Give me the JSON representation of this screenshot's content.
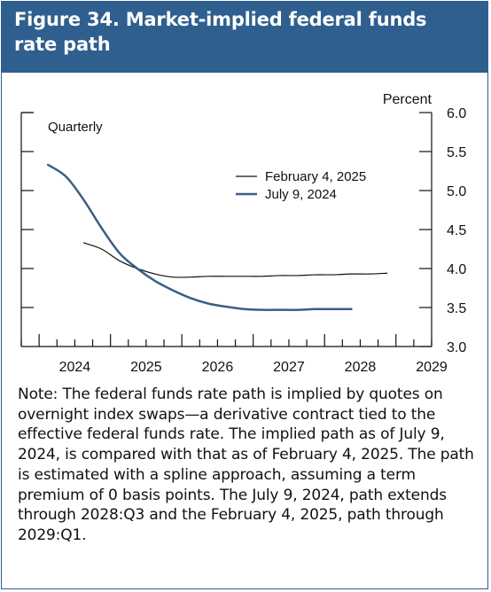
{
  "figure": {
    "title": "Figure 34. Market-implied federal funds rate path",
    "note": "Note: The federal funds rate path is implied by quotes on overnight index swaps—a derivative contract tied to the effective federal funds rate. The implied path as of July 9, 2024, is compared with that as of February 4, 2025. The path is estimated with a spline approach, assuming a term premium of 0 basis points. The July 9, 2024, path extends through 2028:Q3 and the February 4, 2025, path through 2029:Q1."
  },
  "colors": {
    "title_bar": "#2e5f8e",
    "series_feb": "#111111",
    "series_jul": "#3a5f86"
  },
  "chart_data": {
    "type": "line",
    "frequency_label": "Quarterly",
    "ylabel": "Percent",
    "ylim": [
      3.0,
      6.0
    ],
    "yticks": [
      "3.0",
      "3.5",
      "4.0",
      "4.5",
      "5.0",
      "5.5",
      "6.0"
    ],
    "xlim": [
      2023.75,
      2029.5
    ],
    "xticks": [
      "2024",
      "2025",
      "2026",
      "2027",
      "2028",
      "2029"
    ],
    "legend_position": "upper-right",
    "series": [
      {
        "name": "February 4, 2025",
        "points": [
          [
            2024.625,
            4.33
          ],
          [
            2024.875,
            4.25
          ],
          [
            2025.125,
            4.1
          ],
          [
            2025.375,
            4.0
          ],
          [
            2025.625,
            3.93
          ],
          [
            2025.875,
            3.89
          ],
          [
            2026.125,
            3.89
          ],
          [
            2026.375,
            3.9
          ],
          [
            2026.625,
            3.9
          ],
          [
            2026.875,
            3.9
          ],
          [
            2027.125,
            3.9
          ],
          [
            2027.375,
            3.91
          ],
          [
            2027.625,
            3.91
          ],
          [
            2027.875,
            3.92
          ],
          [
            2028.125,
            3.92
          ],
          [
            2028.375,
            3.93
          ],
          [
            2028.625,
            3.93
          ],
          [
            2028.875,
            3.94
          ]
        ]
      },
      {
        "name": "July 9, 2024",
        "points": [
          [
            2024.125,
            5.33
          ],
          [
            2024.375,
            5.18
          ],
          [
            2024.625,
            4.88
          ],
          [
            2024.875,
            4.52
          ],
          [
            2025.125,
            4.2
          ],
          [
            2025.375,
            4.0
          ],
          [
            2025.625,
            3.84
          ],
          [
            2025.875,
            3.72
          ],
          [
            2026.125,
            3.62
          ],
          [
            2026.375,
            3.55
          ],
          [
            2026.625,
            3.51
          ],
          [
            2026.875,
            3.48
          ],
          [
            2027.125,
            3.47
          ],
          [
            2027.375,
            3.47
          ],
          [
            2027.625,
            3.47
          ],
          [
            2027.875,
            3.48
          ],
          [
            2028.125,
            3.48
          ],
          [
            2028.375,
            3.48
          ]
        ]
      }
    ]
  }
}
